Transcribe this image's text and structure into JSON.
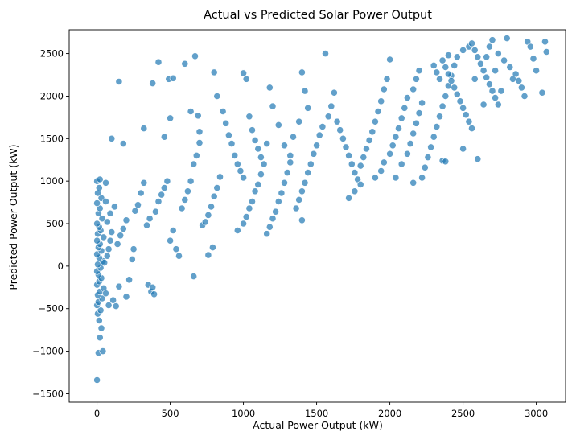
{
  "chart_data": {
    "type": "scatter",
    "title": "Actual vs Predicted Solar Power Output",
    "xlabel": "Actual Power Output (kW)",
    "ylabel": "Predicted Power Output (kW)",
    "xlim": [
      -190,
      3200
    ],
    "ylim": [
      -1600,
      2780
    ],
    "xticks": [
      0,
      500,
      1000,
      1500,
      2000,
      2500,
      3000
    ],
    "yticks": [
      -1500,
      -1000,
      -500,
      0,
      500,
      1000,
      1500,
      2000,
      2500
    ],
    "grid": false,
    "legend": "none",
    "color": "#1f77b4",
    "series": [
      {
        "points": [
          [
            0,
            -1340
          ],
          [
            10,
            -1020
          ],
          [
            40,
            -1000
          ],
          [
            20,
            -840
          ],
          [
            30,
            -730
          ],
          [
            15,
            -640
          ],
          [
            5,
            -560
          ],
          [
            25,
            -520
          ],
          [
            0,
            -460
          ],
          [
            10,
            -420
          ],
          [
            35,
            -380
          ],
          [
            5,
            -340
          ],
          [
            20,
            -300
          ],
          [
            45,
            -260
          ],
          [
            0,
            -220
          ],
          [
            15,
            -180
          ],
          [
            30,
            -140
          ],
          [
            10,
            -100
          ],
          [
            0,
            -60
          ],
          [
            25,
            -20
          ],
          [
            5,
            20
          ],
          [
            40,
            60
          ],
          [
            15,
            100
          ],
          [
            0,
            140
          ],
          [
            30,
            180
          ],
          [
            10,
            220
          ],
          [
            20,
            260
          ],
          [
            0,
            300
          ],
          [
            45,
            340
          ],
          [
            5,
            380
          ],
          [
            25,
            420
          ],
          [
            15,
            460
          ],
          [
            0,
            500
          ],
          [
            35,
            560
          ],
          [
            10,
            620
          ],
          [
            20,
            680
          ],
          [
            0,
            740
          ],
          [
            30,
            800
          ],
          [
            5,
            860
          ],
          [
            15,
            920
          ],
          [
            0,
            1000
          ],
          [
            20,
            1020
          ],
          [
            60,
            980
          ],
          [
            50,
            40
          ],
          [
            70,
            120
          ],
          [
            80,
            200
          ],
          [
            90,
            300
          ],
          [
            100,
            400
          ],
          [
            60,
            -320
          ],
          [
            80,
            -460
          ],
          [
            110,
            -400
          ],
          [
            130,
            -470
          ],
          [
            150,
            -240
          ],
          [
            70,
            520
          ],
          [
            90,
            620
          ],
          [
            120,
            700
          ],
          [
            60,
            760
          ],
          [
            140,
            260
          ],
          [
            160,
            360
          ],
          [
            180,
            440
          ],
          [
            200,
            540
          ],
          [
            100,
            1500
          ],
          [
            150,
            2170
          ],
          [
            180,
            1440
          ],
          [
            200,
            -360
          ],
          [
            220,
            -160
          ],
          [
            240,
            80
          ],
          [
            250,
            200
          ],
          [
            260,
            650
          ],
          [
            280,
            720
          ],
          [
            300,
            860
          ],
          [
            320,
            980
          ],
          [
            350,
            -220
          ],
          [
            370,
            -300
          ],
          [
            380,
            -250
          ],
          [
            390,
            -330
          ],
          [
            340,
            480
          ],
          [
            360,
            560
          ],
          [
            400,
            640
          ],
          [
            420,
            760
          ],
          [
            440,
            840
          ],
          [
            460,
            920
          ],
          [
            480,
            1000
          ],
          [
            320,
            1620
          ],
          [
            380,
            2150
          ],
          [
            420,
            2400
          ],
          [
            460,
            1520
          ],
          [
            490,
            2200
          ],
          [
            500,
            1740
          ],
          [
            520,
            2210
          ],
          [
            500,
            300
          ],
          [
            520,
            420
          ],
          [
            540,
            200
          ],
          [
            560,
            120
          ],
          [
            580,
            680
          ],
          [
            600,
            780
          ],
          [
            620,
            880
          ],
          [
            640,
            1000
          ],
          [
            660,
            1200
          ],
          [
            680,
            1300
          ],
          [
            700,
            1450
          ],
          [
            600,
            2380
          ],
          [
            670,
            2470
          ],
          [
            640,
            1820
          ],
          [
            690,
            1770
          ],
          [
            700,
            1580
          ],
          [
            660,
            -120
          ],
          [
            720,
            480
          ],
          [
            740,
            520
          ],
          [
            760,
            600
          ],
          [
            780,
            700
          ],
          [
            800,
            820
          ],
          [
            820,
            920
          ],
          [
            840,
            1050
          ],
          [
            760,
            130
          ],
          [
            790,
            220
          ],
          [
            800,
            2280
          ],
          [
            820,
            2000
          ],
          [
            860,
            1820
          ],
          [
            880,
            1680
          ],
          [
            900,
            1540
          ],
          [
            920,
            1440
          ],
          [
            940,
            1300
          ],
          [
            960,
            1200
          ],
          [
            980,
            1120
          ],
          [
            1000,
            1040
          ],
          [
            960,
            420
          ],
          [
            1000,
            500
          ],
          [
            1020,
            580
          ],
          [
            1040,
            680
          ],
          [
            1060,
            760
          ],
          [
            1080,
            880
          ],
          [
            1100,
            960
          ],
          [
            1120,
            1080
          ],
          [
            1000,
            2270
          ],
          [
            1020,
            2200
          ],
          [
            1040,
            1760
          ],
          [
            1060,
            1600
          ],
          [
            1080,
            1480
          ],
          [
            1100,
            1380
          ],
          [
            1120,
            1280
          ],
          [
            1140,
            1200
          ],
          [
            1160,
            1440
          ],
          [
            1160,
            380
          ],
          [
            1180,
            460
          ],
          [
            1200,
            560
          ],
          [
            1220,
            640
          ],
          [
            1240,
            760
          ],
          [
            1260,
            860
          ],
          [
            1280,
            980
          ],
          [
            1300,
            1100
          ],
          [
            1320,
            1220
          ],
          [
            1180,
            2100
          ],
          [
            1200,
            1880
          ],
          [
            1240,
            1660
          ],
          [
            1280,
            1420
          ],
          [
            1320,
            1300
          ],
          [
            1340,
            1520
          ],
          [
            1380,
            1700
          ],
          [
            1400,
            2280
          ],
          [
            1420,
            2060
          ],
          [
            1440,
            1860
          ],
          [
            1360,
            680
          ],
          [
            1380,
            780
          ],
          [
            1400,
            880
          ],
          [
            1420,
            980
          ],
          [
            1440,
            1100
          ],
          [
            1460,
            1200
          ],
          [
            1480,
            1320
          ],
          [
            1400,
            540
          ],
          [
            1500,
            1420
          ],
          [
            1520,
            1540
          ],
          [
            1540,
            1640
          ],
          [
            1560,
            2500
          ],
          [
            1580,
            1760
          ],
          [
            1600,
            1880
          ],
          [
            1620,
            2040
          ],
          [
            1640,
            1700
          ],
          [
            1660,
            1600
          ],
          [
            1680,
            1500
          ],
          [
            1700,
            1400
          ],
          [
            1720,
            1300
          ],
          [
            1740,
            1200
          ],
          [
            1760,
            1100
          ],
          [
            1780,
            1020
          ],
          [
            1800,
            960
          ],
          [
            1720,
            800
          ],
          [
            1760,
            880
          ],
          [
            1800,
            1180
          ],
          [
            1820,
            1280
          ],
          [
            1840,
            1380
          ],
          [
            1860,
            1480
          ],
          [
            1880,
            1580
          ],
          [
            1900,
            1700
          ],
          [
            1920,
            1820
          ],
          [
            1940,
            1940
          ],
          [
            1960,
            2080
          ],
          [
            1980,
            2200
          ],
          [
            1900,
            1040
          ],
          [
            1940,
            1120
          ],
          [
            1960,
            1220
          ],
          [
            2000,
            1320
          ],
          [
            2020,
            1420
          ],
          [
            2040,
            1520
          ],
          [
            2060,
            1620
          ],
          [
            2080,
            1740
          ],
          [
            2100,
            1860
          ],
          [
            2120,
            1980
          ],
          [
            2000,
            2430
          ],
          [
            2040,
            1040
          ],
          [
            2080,
            1200
          ],
          [
            2120,
            1320
          ],
          [
            2140,
            1440
          ],
          [
            2160,
            1560
          ],
          [
            2180,
            1680
          ],
          [
            2200,
            1800
          ],
          [
            2220,
            1920
          ],
          [
            2160,
            2080
          ],
          [
            2180,
            2200
          ],
          [
            2200,
            2300
          ],
          [
            2160,
            980
          ],
          [
            2220,
            1040
          ],
          [
            2240,
            1160
          ],
          [
            2260,
            1280
          ],
          [
            2280,
            1400
          ],
          [
            2300,
            1520
          ],
          [
            2320,
            1640
          ],
          [
            2340,
            1760
          ],
          [
            2360,
            1880
          ],
          [
            2380,
            2000
          ],
          [
            2400,
            2120
          ],
          [
            2420,
            2240
          ],
          [
            2440,
            2360
          ],
          [
            2460,
            2460
          ],
          [
            2360,
            1240
          ],
          [
            2380,
            1230
          ],
          [
            2400,
            2480
          ],
          [
            2300,
            2360
          ],
          [
            2320,
            2280
          ],
          [
            2340,
            2200
          ],
          [
            2360,
            2420
          ],
          [
            2380,
            2340
          ],
          [
            2400,
            2260
          ],
          [
            2420,
            2180
          ],
          [
            2440,
            2100
          ],
          [
            2460,
            2020
          ],
          [
            2480,
            1940
          ],
          [
            2500,
            1860
          ],
          [
            2520,
            1780
          ],
          [
            2540,
            1700
          ],
          [
            2560,
            1620
          ],
          [
            2500,
            2540
          ],
          [
            2540,
            2580
          ],
          [
            2560,
            2620
          ],
          [
            2580,
            2540
          ],
          [
            2600,
            2460
          ],
          [
            2620,
            2380
          ],
          [
            2640,
            2300
          ],
          [
            2660,
            2220
          ],
          [
            2680,
            2140
          ],
          [
            2700,
            2060
          ],
          [
            2720,
            1980
          ],
          [
            2740,
            1900
          ],
          [
            2500,
            1380
          ],
          [
            2600,
            1260
          ],
          [
            2640,
            1900
          ],
          [
            2660,
            2460
          ],
          [
            2680,
            2580
          ],
          [
            2700,
            2660
          ],
          [
            2740,
            2500
          ],
          [
            2780,
            2420
          ],
          [
            2800,
            2680
          ],
          [
            2820,
            2340
          ],
          [
            2860,
            2260
          ],
          [
            2880,
            2180
          ],
          [
            2900,
            2100
          ],
          [
            2920,
            2000
          ],
          [
            2940,
            2640
          ],
          [
            2960,
            2580
          ],
          [
            2980,
            2440
          ],
          [
            3000,
            2300
          ],
          [
            3040,
            2040
          ],
          [
            3060,
            2640
          ],
          [
            3070,
            2520
          ],
          [
            2840,
            2200
          ],
          [
            2760,
            2060
          ],
          [
            2720,
            2300
          ],
          [
            2580,
            2200
          ]
        ]
      }
    ]
  }
}
